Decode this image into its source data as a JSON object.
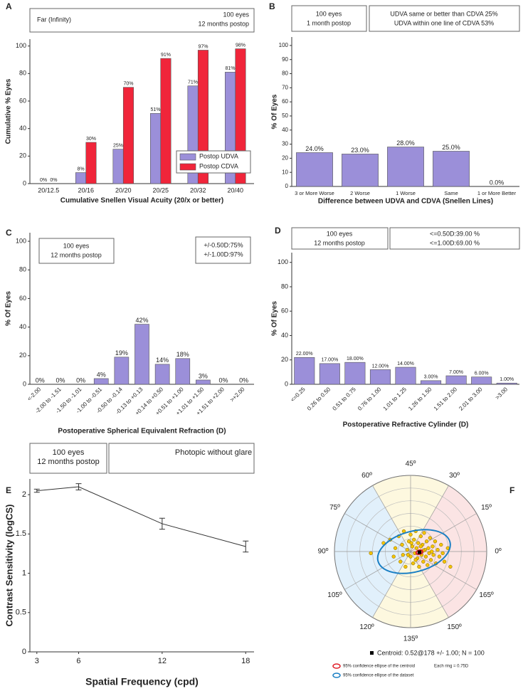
{
  "chart_data": [
    {
      "type": "bar",
      "label": "A",
      "boxes": [
        {
          "lines": [
            "Far (Infinity)"
          ]
        },
        {
          "lines": [
            "100 eyes",
            "12 months postop"
          ]
        }
      ],
      "xlabel": "Cumulative Snellen Visual Acuity (20/x or better)",
      "ylabel": "Cumulative % Eyes",
      "categories": [
        "20/12.5",
        "20/16",
        "20/20",
        "20/25",
        "20/32",
        "20/40"
      ],
      "series": [
        {
          "name": "Postop UDVA",
          "color": "#9b8fd9",
          "values": [
            0,
            8,
            25,
            51,
            71,
            81
          ],
          "value_labels": [
            "0%",
            "8%",
            "25%",
            "51%",
            "71%",
            "81%"
          ]
        },
        {
          "name": "Postop CDVA",
          "color": "#f0253a",
          "values": [
            0,
            30,
            70,
            91,
            97,
            98
          ],
          "value_labels": [
            "0%",
            "30%",
            "70%",
            "91%",
            "97%",
            "98%"
          ]
        }
      ],
      "ylim": [
        0,
        105
      ],
      "yticks": [
        0,
        20,
        40,
        60,
        80,
        100
      ]
    },
    {
      "type": "bar",
      "label": "B",
      "boxes": [
        {
          "lines": [
            "100 eyes",
            "1 month postop"
          ]
        },
        {
          "lines": [
            "UDVA same or better than CDVA 25%",
            "UDVA within one line of CDVA 53%"
          ]
        }
      ],
      "xlabel": "Difference between  UDVA  and  CDVA (Snellen Lines)",
      "ylabel": "% Of Eyes",
      "categories": [
        "3 or More Worse",
        "2 Worse",
        "1 Worse",
        "Same",
        "1 or More Better"
      ],
      "values": [
        24,
        23,
        28,
        25,
        0
      ],
      "value_labels": [
        "24.0%",
        "23.0%",
        "28.0%",
        "25.0%",
        "0.0%"
      ],
      "color": "#9b8fd9",
      "ylim": [
        0,
        106
      ],
      "yticks": [
        0,
        10,
        20,
        30,
        40,
        50,
        60,
        70,
        80,
        90,
        100
      ]
    },
    {
      "type": "bar",
      "label": "C",
      "boxes": [
        {
          "lines": [
            "100 eyes",
            "12 months postop"
          ]
        },
        {
          "lines": [
            "+/-0.50D:75%",
            "+/-1.00D:97%"
          ]
        }
      ],
      "xlabel": "Postoperative Spherical Equivalent Refraction (D)",
      "ylabel": "% Of Eyes",
      "categories": [
        "<-2.00",
        "-2.00 to -1.51",
        "-1.50 to -1.01",
        "-1.00 to -0.51",
        "-0.50 to -0.14",
        "-0.13 to +0.13",
        "+0.14 to +0.50",
        "+0.51 to +1.00",
        "+1.01 to +1.50",
        "+1.51 to +2.00",
        ">+2.00"
      ],
      "values": [
        0,
        0,
        0,
        4,
        19,
        42,
        14,
        18,
        3,
        0,
        0
      ],
      "value_labels": [
        "0%",
        "0%",
        "0%",
        "4%",
        "19%",
        "42%",
        "14%",
        "18%",
        "3%",
        "0%",
        "0%"
      ],
      "color": "#9b8fd9",
      "ylim": [
        0,
        106
      ],
      "yticks": [
        0,
        20,
        40,
        60,
        80,
        100
      ]
    },
    {
      "type": "bar",
      "label": "D",
      "boxes": [
        {
          "lines": [
            "100 eyes",
            "12 months postop"
          ]
        },
        {
          "lines": [
            "<=0.50D:39.00 %",
            "<=1.00D:69.00 %"
          ]
        }
      ],
      "xlabel": "Postoperative Refractive Cylinder (D)",
      "ylabel": "% Of Eyes",
      "categories": [
        "<=0.25",
        "0.26 to 0.50",
        "0.51 to 0.75",
        "0.76 to 1.00",
        "1.01 to 1.25",
        "1.26 to 1.50",
        "1.51 to 2.00",
        "2.01 to 3.00",
        ">3.00"
      ],
      "values": [
        22,
        17,
        18,
        12,
        14,
        3,
        7,
        6,
        1
      ],
      "value_labels": [
        "22.00%",
        "17.00%",
        "18.00%",
        "12.00%",
        "14.00%",
        "3.00%",
        "7.00%",
        "6.00%",
        "1.00%"
      ],
      "color": "#9b8fd9",
      "ylim": [
        0,
        108
      ],
      "yticks": [
        0,
        20,
        40,
        60,
        80,
        100
      ]
    },
    {
      "type": "line",
      "label": "E",
      "boxes": [
        {
          "lines": [
            "100 eyes",
            "12 months postop"
          ]
        },
        {
          "lines": [
            "Photopic without glare"
          ]
        }
      ],
      "xlabel": "Spatial Frequency (cpd)",
      "ylabel": "Contrast Sensitivity (logCS)",
      "x": [
        3,
        6,
        12,
        18
      ],
      "values": [
        2.05,
        2.1,
        1.63,
        1.34
      ],
      "errors": [
        0.02,
        0.04,
        0.07,
        0.07
      ],
      "color": "#333333",
      "xlim": [
        2.5,
        18.6
      ],
      "ylim": [
        0,
        2.2
      ],
      "xticks": [
        3,
        6,
        12,
        18
      ],
      "yticks": [
        0,
        0.5,
        1,
        1.5,
        2
      ]
    },
    {
      "type": "polar_scatter",
      "label": "F",
      "thetaticks": [
        {
          "value": 0,
          "label": "0º"
        },
        {
          "value": 15,
          "label": "15º"
        },
        {
          "value": 30,
          "label": "30º"
        },
        {
          "value": 45,
          "label": "45º"
        },
        {
          "value": 60,
          "label": "60º"
        },
        {
          "value": 75,
          "label": "75º"
        },
        {
          "value": 90,
          "label": "90º"
        },
        {
          "value": 105,
          "label": "105º"
        },
        {
          "value": 120,
          "label": "120º"
        },
        {
          "value": 135,
          "label": "135º"
        },
        {
          "value": 150,
          "label": "150º"
        },
        {
          "value": 165,
          "label": "165º"
        }
      ],
      "rlim": [
        0,
        4.5
      ],
      "x": [
        -2.35,
        -1.6,
        -1.2,
        -1.0,
        -0.9,
        -0.7,
        -0.6,
        -0.5,
        -0.4,
        -0.3,
        -0.2,
        -0.1,
        0.0,
        0.0,
        0.1,
        0.15,
        0.2,
        0.25,
        0.3,
        0.35,
        0.4,
        0.45,
        0.5,
        0.55,
        0.6,
        0.65,
        0.7,
        0.75,
        0.8,
        0.85,
        0.9,
        0.95,
        1.0,
        1.05,
        1.1,
        1.15,
        1.2,
        1.3,
        1.35,
        1.45,
        1.5,
        1.6,
        1.7,
        1.8,
        1.9,
        2.0,
        2.2,
        2.35,
        -0.15,
        0.3,
        0.6,
        0.05,
        -0.45,
        0.75,
        1.25
      ],
      "y": [
        -0.1,
        0.5,
        0.7,
        -0.3,
        0.2,
        0.9,
        -0.6,
        0.4,
        1.2,
        -0.9,
        0.1,
        0.6,
        -0.3,
        1.0,
        0.3,
        -0.7,
        0.7,
        -0.1,
        1.2,
        0.2,
        -0.4,
        0.5,
        -0.9,
        0.0,
        0.9,
        -0.2,
        0.4,
        -0.6,
        1.1,
        0.1,
        -0.3,
        0.6,
        -0.8,
        0.2,
        -0.1,
        0.8,
        -0.5,
        0.3,
        -0.2,
        0.6,
        -0.7,
        0.1,
        -0.3,
        0.4,
        -0.1,
        -0.6,
        0.2,
        -0.9,
        -0.2,
        -0.5,
        0.3,
        0.5,
        -0.2,
        0.05,
        0.0
      ],
      "color": "#f5c400",
      "centroid": {
        "x": 0.52,
        "y": -0.04
      },
      "centroid_text": "Centroid: 0.52@178 +/- 1.00; N = 100",
      "ellipses": [
        {
          "name": "95% confidence ellipse of the centroid",
          "color": "#e0202a",
          "cx": 0.52,
          "cy": -0.04,
          "rx": 0.2,
          "ry": 0.12,
          "angle": 15
        },
        {
          "name": "95% confidence ellipse of the dataset",
          "color": "#1a7fc4",
          "cx": 0.2,
          "cy": 0,
          "rx": 2.2,
          "ry": 1.2,
          "angle": 15
        }
      ],
      "ring_note": "Each ring = 0.75D"
    }
  ]
}
